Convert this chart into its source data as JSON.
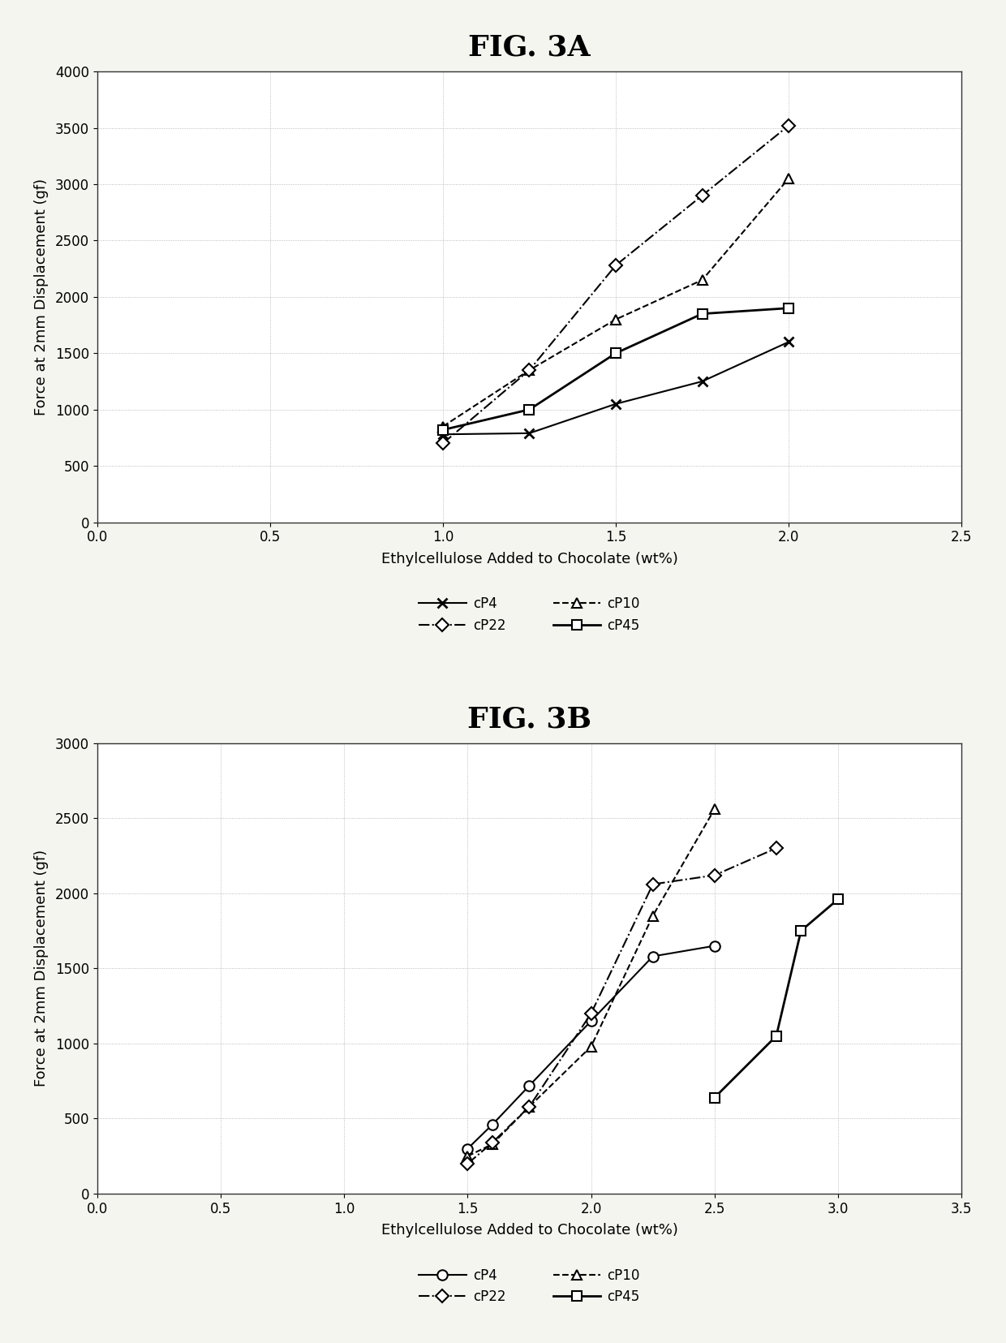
{
  "fig3a_title": "FIG. 3A",
  "fig3b_title": "FIG. 3B",
  "xlabel": "Ethylcellulose Added to Chocolate (wt%)",
  "ylabel": "Force at 2mm Displacement (gf)",
  "fig3a": {
    "cP4": {
      "x": [
        1.0,
        1.25,
        1.5,
        1.75,
        2.0
      ],
      "y": [
        780,
        790,
        1050,
        1250,
        1600
      ]
    },
    "cP10": {
      "x": [
        1.0,
        1.25,
        1.5,
        1.75,
        2.0
      ],
      "y": [
        850,
        1350,
        1800,
        2150,
        3050
      ]
    },
    "cP22": {
      "x": [
        1.0,
        1.25,
        1.5,
        1.75,
        2.0
      ],
      "y": [
        700,
        1350,
        2280,
        2900,
        3520
      ]
    },
    "cP45": {
      "x": [
        1.0,
        1.25,
        1.5,
        1.75,
        2.0
      ],
      "y": [
        820,
        1000,
        1500,
        1850,
        1900
      ]
    },
    "xlim": [
      0,
      2.5
    ],
    "ylim": [
      0,
      4000
    ],
    "xticks": [
      0,
      0.5,
      1.0,
      1.5,
      2.0,
      2.5
    ],
    "yticks": [
      0,
      500,
      1000,
      1500,
      2000,
      2500,
      3000,
      3500,
      4000
    ]
  },
  "fig3b": {
    "cP4": {
      "x": [
        1.5,
        1.6,
        1.75,
        2.0,
        2.25,
        2.5
      ],
      "y": [
        300,
        460,
        720,
        1150,
        1580,
        1650
      ]
    },
    "cP10": {
      "x": [
        1.5,
        1.6,
        1.75,
        2.0,
        2.25,
        2.5
      ],
      "y": [
        250,
        330,
        580,
        980,
        1850,
        2560
      ]
    },
    "cP22": {
      "x": [
        1.5,
        1.6,
        1.75,
        2.0,
        2.25,
        2.5,
        2.75
      ],
      "y": [
        200,
        340,
        580,
        1200,
        2060,
        2120,
        2300
      ]
    },
    "cP45": {
      "x": [
        2.5,
        2.75,
        2.85,
        3.0
      ],
      "y": [
        640,
        1050,
        1750,
        1960
      ]
    },
    "xlim": [
      0,
      3.5
    ],
    "ylim": [
      0,
      3000
    ],
    "xticks": [
      0,
      0.5,
      1.0,
      1.5,
      2.0,
      2.5,
      3.0,
      3.5
    ],
    "yticks": [
      0,
      500,
      1000,
      1500,
      2000,
      2500,
      3000
    ]
  },
  "series_3a": {
    "cP4": {
      "linestyle": "-",
      "marker": "x",
      "markersize": 9,
      "linewidth": 1.5,
      "markeredgewidth": 2.0
    },
    "cP10": {
      "linestyle": "--",
      "marker": "^",
      "markersize": 9,
      "linewidth": 1.5,
      "markeredgewidth": 1.5
    },
    "cP22": {
      "linestyle": "-.",
      "marker": "D",
      "markersize": 8,
      "linewidth": 1.5,
      "markeredgewidth": 1.5
    },
    "cP45": {
      "linestyle": "-",
      "marker": "s",
      "markersize": 8,
      "linewidth": 2.0,
      "markeredgewidth": 1.5
    }
  },
  "series_3b": {
    "cP4": {
      "linestyle": "-",
      "marker": "o",
      "markersize": 9,
      "linewidth": 1.5,
      "markeredgewidth": 1.5
    },
    "cP10": {
      "linestyle": "--",
      "marker": "^",
      "markersize": 9,
      "linewidth": 1.5,
      "markeredgewidth": 1.5
    },
    "cP22": {
      "linestyle": "-.",
      "marker": "D",
      "markersize": 8,
      "linewidth": 1.5,
      "markeredgewidth": 1.5
    },
    "cP45": {
      "linestyle": "-",
      "marker": "s",
      "markersize": 8,
      "linewidth": 2.0,
      "markeredgewidth": 1.5
    }
  },
  "legend_order_3a": [
    "cP4",
    "cP22",
    "cP10",
    "cP45"
  ],
  "legend_order_3b": [
    "cP4",
    "cP22",
    "cP10",
    "cP45"
  ],
  "legend_labels": [
    "cP4",
    "cP10",
    "cP22",
    "cP45"
  ],
  "color": "#000000",
  "bg_color": "#f5f5f0",
  "plot_bg": "#ffffff",
  "title_fontsize": 26,
  "axis_label_fontsize": 13,
  "tick_fontsize": 12,
  "legend_fontsize": 12
}
